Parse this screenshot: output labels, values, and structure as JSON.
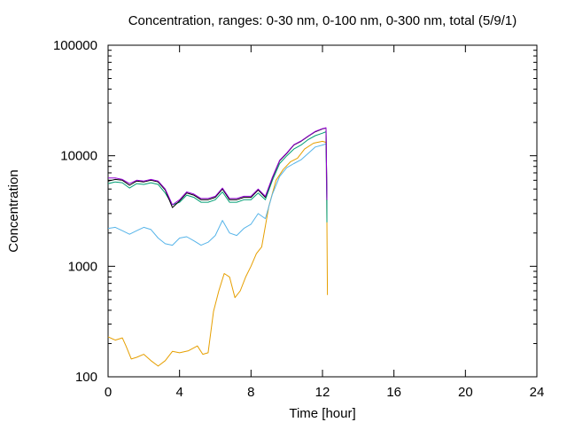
{
  "chart_data": {
    "type": "line",
    "title": "Concentration, ranges: 0-30 nm, 0-100 nm, 0-300 nm, total (5/9/1)",
    "xlabel": "Time [hour]",
    "ylabel": "Concentration",
    "xlim": [
      0,
      24
    ],
    "ylim": [
      100,
      100000
    ],
    "yscale": "log",
    "grid": false,
    "x_ticks": [
      0,
      4,
      8,
      12,
      16,
      20,
      24
    ],
    "x_tick_labels": [
      "0",
      "4",
      "8",
      "12",
      "16",
      "20",
      "24"
    ],
    "y_ticks": [
      100,
      1000,
      10000,
      100000
    ],
    "y_tick_labels": [
      "100",
      "1000",
      "10000",
      "100000"
    ],
    "series": [
      {
        "color": "#e69f00",
        "points": [
          [
            0,
            230
          ],
          [
            0.4,
            215
          ],
          [
            0.8,
            225
          ],
          [
            1.0,
            190
          ],
          [
            1.3,
            145
          ],
          [
            1.6,
            150
          ],
          [
            2.0,
            160
          ],
          [
            2.4,
            140
          ],
          [
            2.8,
            125
          ],
          [
            3.2,
            140
          ],
          [
            3.6,
            170
          ],
          [
            4.0,
            165
          ],
          [
            4.5,
            172
          ],
          [
            5.0,
            190
          ],
          [
            5.3,
            160
          ],
          [
            5.6,
            165
          ],
          [
            5.9,
            390
          ],
          [
            6.2,
            600
          ],
          [
            6.5,
            860
          ],
          [
            6.8,
            800
          ],
          [
            7.1,
            520
          ],
          [
            7.4,
            600
          ],
          [
            7.7,
            800
          ],
          [
            8.0,
            1000
          ],
          [
            8.3,
            1300
          ],
          [
            8.6,
            1500
          ],
          [
            9.0,
            3500
          ],
          [
            9.4,
            6000
          ],
          [
            9.8,
            7500
          ],
          [
            10.2,
            8800
          ],
          [
            10.6,
            9500
          ],
          [
            11.0,
            11500
          ],
          [
            11.5,
            13000
          ],
          [
            12.0,
            13500
          ],
          [
            12.2,
            13200
          ],
          [
            12.25,
            2500
          ],
          [
            12.28,
            550
          ]
        ]
      },
      {
        "color": "#56b4e9",
        "points": [
          [
            0,
            2200
          ],
          [
            0.4,
            2250
          ],
          [
            0.8,
            2100
          ],
          [
            1.2,
            1950
          ],
          [
            1.6,
            2100
          ],
          [
            2.0,
            2250
          ],
          [
            2.4,
            2150
          ],
          [
            2.8,
            1800
          ],
          [
            3.2,
            1600
          ],
          [
            3.6,
            1550
          ],
          [
            4.0,
            1800
          ],
          [
            4.4,
            1850
          ],
          [
            4.8,
            1700
          ],
          [
            5.2,
            1550
          ],
          [
            5.6,
            1650
          ],
          [
            6.0,
            1900
          ],
          [
            6.4,
            2600
          ],
          [
            6.8,
            2000
          ],
          [
            7.2,
            1900
          ],
          [
            7.6,
            2200
          ],
          [
            8.0,
            2400
          ],
          [
            8.4,
            3000
          ],
          [
            8.8,
            2700
          ],
          [
            9.2,
            4500
          ],
          [
            9.6,
            6500
          ],
          [
            10.0,
            7800
          ],
          [
            10.4,
            8500
          ],
          [
            10.8,
            9200
          ],
          [
            11.2,
            10500
          ],
          [
            11.6,
            12000
          ],
          [
            12.0,
            12500
          ],
          [
            12.2,
            12800
          ],
          [
            12.25,
            2600
          ]
        ]
      },
      {
        "color": "#009e73",
        "points": [
          [
            0,
            5600
          ],
          [
            0.4,
            5800
          ],
          [
            0.8,
            5700
          ],
          [
            1.2,
            5100
          ],
          [
            1.6,
            5600
          ],
          [
            2.0,
            5500
          ],
          [
            2.4,
            5700
          ],
          [
            2.8,
            5500
          ],
          [
            3.2,
            4600
          ],
          [
            3.6,
            3600
          ],
          [
            4.0,
            3800
          ],
          [
            4.4,
            4400
          ],
          [
            4.8,
            4200
          ],
          [
            5.2,
            3800
          ],
          [
            5.6,
            3800
          ],
          [
            6.0,
            4000
          ],
          [
            6.4,
            4700
          ],
          [
            6.8,
            3800
          ],
          [
            7.2,
            3800
          ],
          [
            7.6,
            4000
          ],
          [
            8.0,
            4000
          ],
          [
            8.4,
            4600
          ],
          [
            8.8,
            4000
          ],
          [
            9.2,
            6000
          ],
          [
            9.6,
            8500
          ],
          [
            10.0,
            10000
          ],
          [
            10.4,
            11500
          ],
          [
            10.8,
            12500
          ],
          [
            11.2,
            14000
          ],
          [
            11.6,
            15200
          ],
          [
            12.0,
            16000
          ],
          [
            12.2,
            16500
          ],
          [
            12.25,
            3800
          ],
          [
            12.25,
            2500
          ]
        ]
      },
      {
        "color": "#000000",
        "points": [
          [
            0,
            5900
          ],
          [
            0.4,
            6100
          ],
          [
            0.8,
            6000
          ],
          [
            1.2,
            5400
          ],
          [
            1.6,
            5900
          ],
          [
            2.0,
            5800
          ],
          [
            2.4,
            6000
          ],
          [
            2.8,
            5800
          ],
          [
            3.2,
            4900
          ],
          [
            3.6,
            3400
          ],
          [
            4.0,
            3900
          ],
          [
            4.4,
            4600
          ],
          [
            4.8,
            4400
          ],
          [
            5.2,
            4000
          ],
          [
            5.6,
            4000
          ],
          [
            6.0,
            4200
          ],
          [
            6.4,
            5000
          ],
          [
            6.8,
            4000
          ],
          [
            7.2,
            4000
          ],
          [
            7.6,
            4200
          ],
          [
            8.0,
            4200
          ],
          [
            8.4,
            4900
          ],
          [
            8.8,
            4200
          ],
          [
            9.2,
            6300
          ],
          [
            9.6,
            9000
          ],
          [
            10.0,
            10500
          ],
          [
            10.4,
            12500
          ],
          [
            10.8,
            13500
          ],
          [
            11.2,
            15000
          ],
          [
            11.6,
            16500
          ],
          [
            12.0,
            17500
          ],
          [
            12.2,
            17800
          ],
          [
            12.25,
            4000
          ]
        ]
      },
      {
        "color": "#9400d3",
        "points": [
          [
            0,
            6300
          ],
          [
            0.4,
            6300
          ],
          [
            0.8,
            6100
          ],
          [
            1.2,
            5600
          ],
          [
            1.6,
            6000
          ],
          [
            2.0,
            5900
          ],
          [
            2.4,
            6100
          ],
          [
            2.8,
            5900
          ],
          [
            3.2,
            5000
          ],
          [
            3.6,
            3600
          ],
          [
            4.0,
            4000
          ],
          [
            4.4,
            4700
          ],
          [
            4.8,
            4500
          ],
          [
            5.2,
            4100
          ],
          [
            5.6,
            4100
          ],
          [
            6.0,
            4300
          ],
          [
            6.4,
            5100
          ],
          [
            6.8,
            4100
          ],
          [
            7.2,
            4100
          ],
          [
            7.6,
            4300
          ],
          [
            8.0,
            4300
          ],
          [
            8.4,
            5000
          ],
          [
            8.8,
            4300
          ],
          [
            9.2,
            6400
          ],
          [
            9.6,
            9100
          ],
          [
            10.0,
            10600
          ],
          [
            10.4,
            12600
          ],
          [
            10.8,
            13600
          ],
          [
            11.2,
            15100
          ],
          [
            11.6,
            16600
          ],
          [
            12.0,
            17600
          ],
          [
            12.2,
            17900
          ],
          [
            12.25,
            4000
          ]
        ]
      }
    ]
  }
}
